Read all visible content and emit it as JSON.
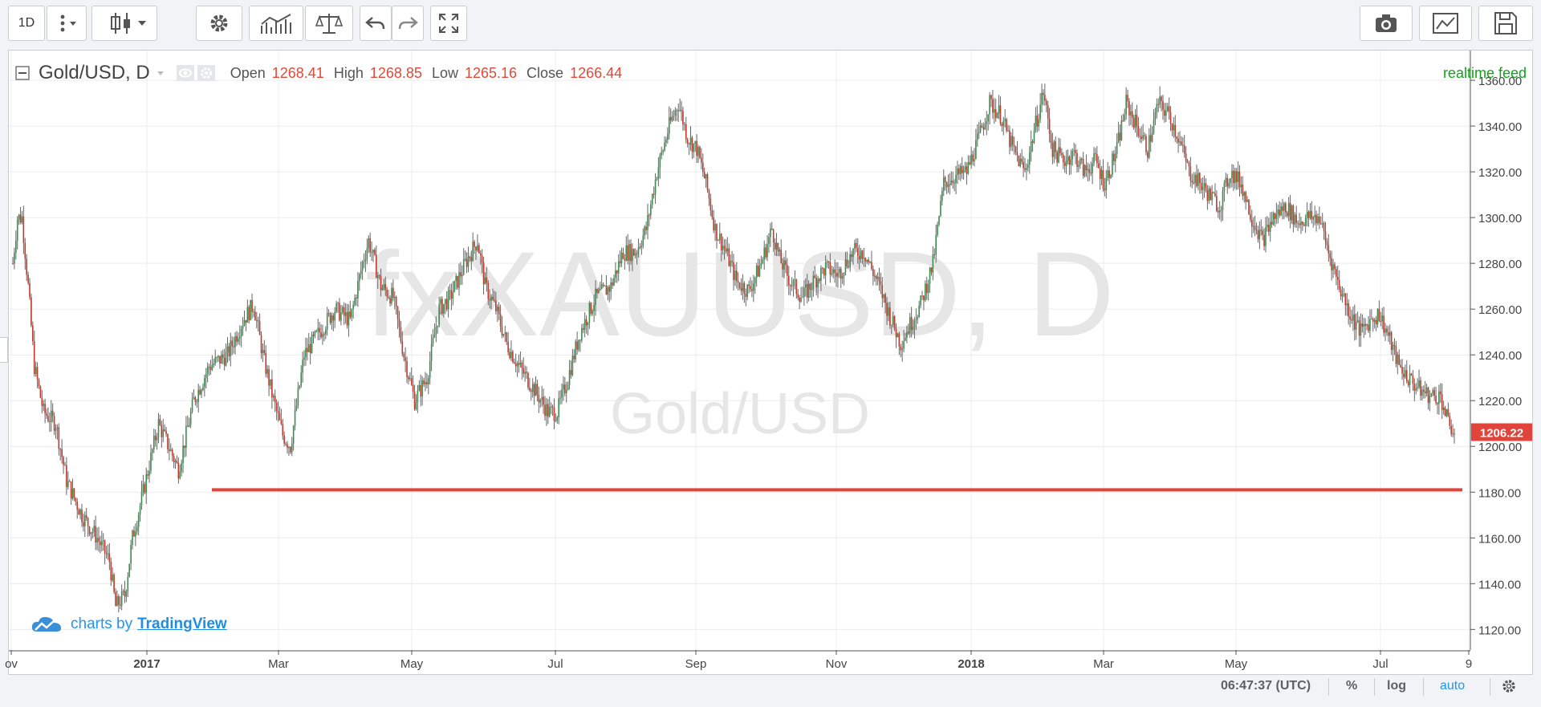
{
  "toolbar": {
    "interval": "1D",
    "icons": [
      "more-vertical-icon",
      "chevron-down-icon",
      "candles-icon",
      "chevron-down-icon",
      "gear-icon",
      "indicators-icon",
      "compare-icon",
      "undo-icon",
      "redo-icon",
      "fullscreen-icon",
      "camera-icon",
      "template-icon",
      "save-icon"
    ]
  },
  "legend": {
    "symbol": "Gold/USD, D",
    "open_label": "Open",
    "open": "1268.41",
    "high_label": "High",
    "high": "1268.85",
    "low_label": "Low",
    "low": "1265.16",
    "close_label": "Close",
    "close": "1266.44"
  },
  "realtime_label": "realtime feed",
  "watermark": {
    "symbol": "fxXAUUSD, D",
    "name": "Gold/USD"
  },
  "branding": {
    "prefix": "charts by",
    "name": "TradingView"
  },
  "statusbar": {
    "time": "06:47:37 (UTC)",
    "percent": "%",
    "log": "log",
    "auto": "auto"
  },
  "colors": {
    "up": "#3b8d4f",
    "down": "#c0392b",
    "line": "#e0443a",
    "price_tag": "#e0443a"
  },
  "chart_data": {
    "type": "candlestick",
    "series_name": "Gold/USD",
    "interval": "D",
    "x_tick_labels": [
      "ov",
      "2017",
      "Mar",
      "May",
      "Jul",
      "Sep",
      "Nov",
      "2018",
      "Mar",
      "May",
      "Jul",
      "9"
    ],
    "y_tick_labels": [
      "1120.00",
      "1140.00",
      "1160.00",
      "1180.00",
      "1200.00",
      "1220.00",
      "1240.00",
      "1260.00",
      "1280.00",
      "1300.00",
      "1320.00",
      "1340.00",
      "1360.00"
    ],
    "ylim": [
      1111,
      1373
    ],
    "last_price": "1206.22",
    "horizontal_line": {
      "value": 1181
    },
    "waypoints": [
      [
        0,
        1280
      ],
      [
        3,
        1300
      ],
      [
        6,
        1300
      ],
      [
        10,
        1270
      ],
      [
        14,
        1235
      ],
      [
        20,
        1215
      ],
      [
        28,
        1210
      ],
      [
        35,
        1185
      ],
      [
        45,
        1170
      ],
      [
        55,
        1160
      ],
      [
        63,
        1150
      ],
      [
        67,
        1130
      ],
      [
        73,
        1135
      ],
      [
        78,
        1160
      ],
      [
        85,
        1180
      ],
      [
        95,
        1210
      ],
      [
        108,
        1190
      ],
      [
        118,
        1220
      ],
      [
        128,
        1235
      ],
      [
        140,
        1240
      ],
      [
        150,
        1255
      ],
      [
        157,
        1262
      ],
      [
        163,
        1240
      ],
      [
        170,
        1220
      ],
      [
        176,
        1205
      ],
      [
        181,
        1200
      ],
      [
        190,
        1240
      ],
      [
        200,
        1250
      ],
      [
        210,
        1260
      ],
      [
        220,
        1255
      ],
      [
        228,
        1280
      ],
      [
        232,
        1290
      ],
      [
        240,
        1270
      ],
      [
        248,
        1265
      ],
      [
        255,
        1240
      ],
      [
        262,
        1220
      ],
      [
        270,
        1230
      ],
      [
        278,
        1260
      ],
      [
        285,
        1265
      ],
      [
        295,
        1280
      ],
      [
        303,
        1290
      ],
      [
        308,
        1270
      ],
      [
        315,
        1260
      ],
      [
        322,
        1245
      ],
      [
        330,
        1235
      ],
      [
        340,
        1225
      ],
      [
        349,
        1215
      ],
      [
        355,
        1215
      ],
      [
        362,
        1230
      ],
      [
        370,
        1250
      ],
      [
        380,
        1265
      ],
      [
        390,
        1270
      ],
      [
        398,
        1285
      ],
      [
        406,
        1285
      ],
      [
        413,
        1295
      ],
      [
        420,
        1320
      ],
      [
        428,
        1340
      ],
      [
        434,
        1350
      ],
      [
        440,
        1335
      ],
      [
        446,
        1330
      ],
      [
        452,
        1315
      ],
      [
        458,
        1295
      ],
      [
        465,
        1285
      ],
      [
        472,
        1272
      ],
      [
        480,
        1268
      ],
      [
        488,
        1280
      ],
      [
        495,
        1295
      ],
      [
        500,
        1282
      ],
      [
        507,
        1272
      ],
      [
        515,
        1265
      ],
      [
        522,
        1272
      ],
      [
        530,
        1278
      ],
      [
        538,
        1275
      ],
      [
        548,
        1285
      ],
      [
        555,
        1285
      ],
      [
        565,
        1270
      ],
      [
        573,
        1255
      ],
      [
        579,
        1245
      ],
      [
        584,
        1252
      ],
      [
        592,
        1262
      ],
      [
        600,
        1280
      ],
      [
        607,
        1315
      ],
      [
        614,
        1318
      ],
      [
        622,
        1320
      ],
      [
        630,
        1335
      ],
      [
        637,
        1350
      ],
      [
        644,
        1345
      ],
      [
        652,
        1330
      ],
      [
        660,
        1320
      ],
      [
        666,
        1338
      ],
      [
        672,
        1355
      ],
      [
        678,
        1330
      ],
      [
        685,
        1325
      ],
      [
        692,
        1328
      ],
      [
        699,
        1320
      ],
      [
        706,
        1325
      ],
      [
        712,
        1315
      ],
      [
        720,
        1330
      ],
      [
        726,
        1350
      ],
      [
        733,
        1340
      ],
      [
        740,
        1330
      ],
      [
        747,
        1350
      ],
      [
        754,
        1345
      ],
      [
        760,
        1335
      ],
      [
        767,
        1320
      ],
      [
        774,
        1315
      ],
      [
        780,
        1310
      ],
      [
        787,
        1305
      ],
      [
        794,
        1320
      ],
      [
        801,
        1315
      ],
      [
        808,
        1300
      ],
      [
        815,
        1290
      ],
      [
        822,
        1300
      ],
      [
        830,
        1305
      ],
      [
        838,
        1298
      ],
      [
        845,
        1300
      ],
      [
        852,
        1300
      ],
      [
        858,
        1285
      ],
      [
        865,
        1270
      ],
      [
        872,
        1258
      ],
      [
        879,
        1250
      ],
      [
        885,
        1255
      ],
      [
        891,
        1258
      ],
      [
        897,
        1248
      ],
      [
        904,
        1235
      ],
      [
        910,
        1230
      ],
      [
        917,
        1225
      ],
      [
        924,
        1222
      ],
      [
        931,
        1222
      ],
      [
        936,
        1210
      ],
      [
        940,
        1206
      ]
    ]
  }
}
